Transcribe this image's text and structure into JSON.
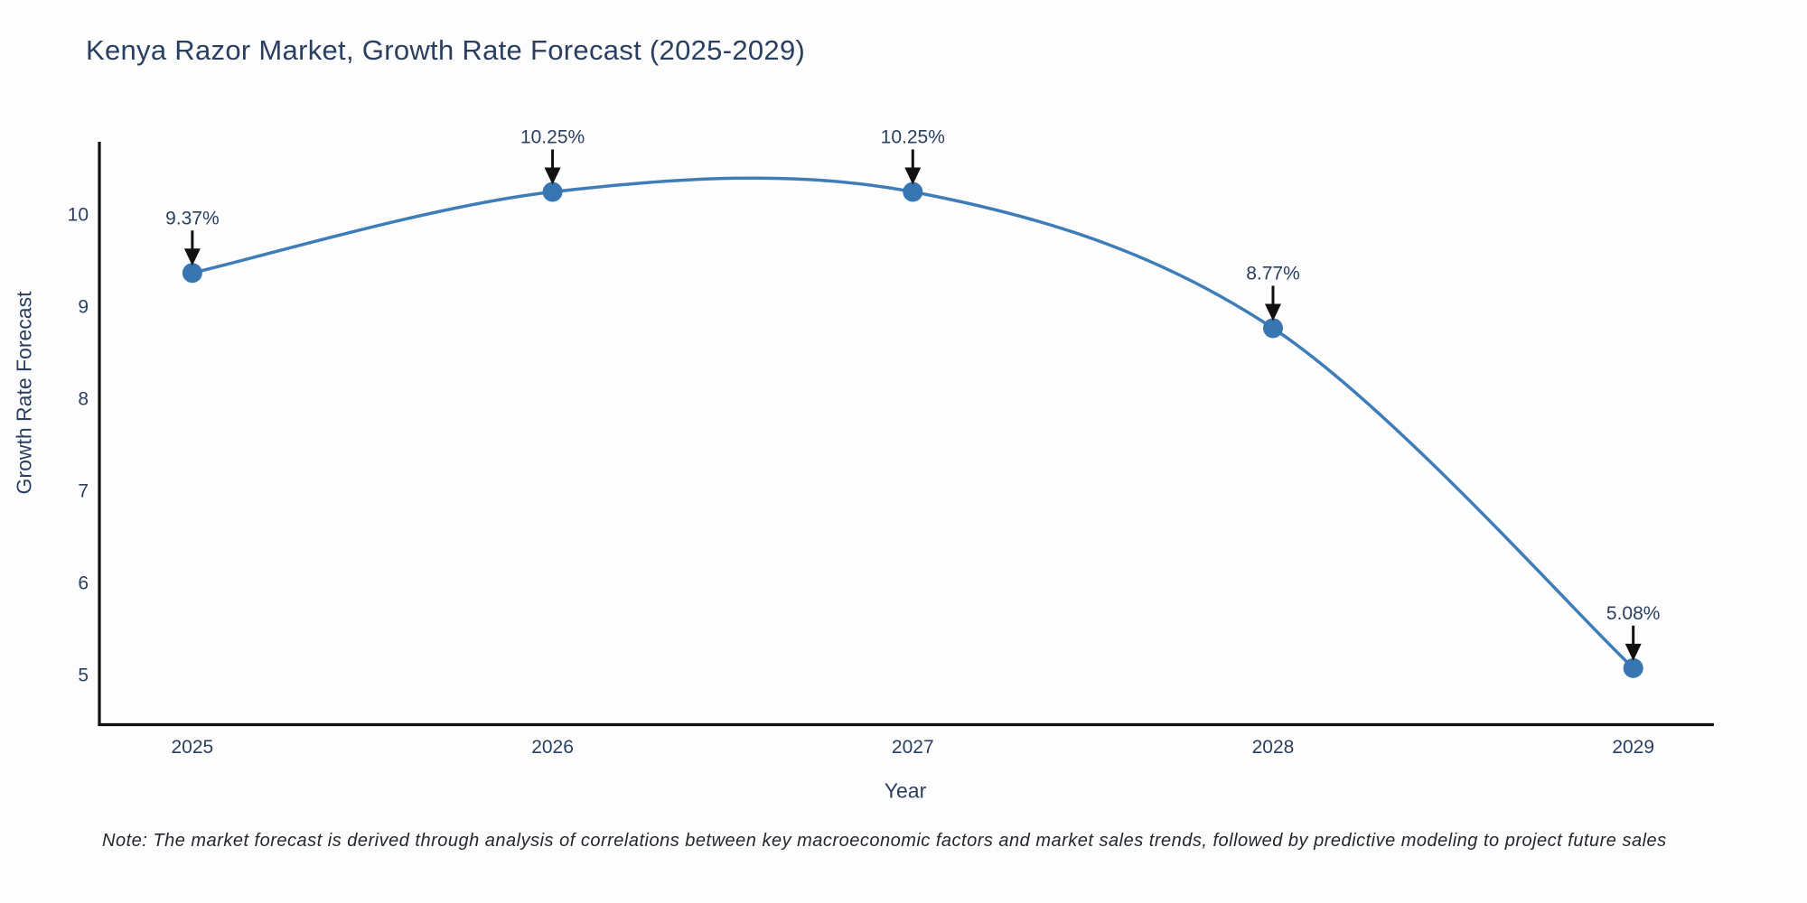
{
  "title": "Kenya Razor Market, Growth Rate Forecast (2025-2029)",
  "note": "Note: The market forecast is derived through analysis of correlations between key macroeconomic factors and market sales trends, followed by predictive modeling to project future sales",
  "chart_data": {
    "type": "line",
    "title": "Kenya Razor Market, Growth Rate Forecast (2025-2029)",
    "xlabel": "Year",
    "ylabel": "Growth Rate Forecast",
    "x": [
      2025,
      2026,
      2027,
      2028,
      2029
    ],
    "values": [
      9.37,
      10.25,
      10.25,
      8.77,
      5.08
    ],
    "point_labels": [
      "9.37%",
      "10.25%",
      "10.25%",
      "8.77%",
      "5.08%"
    ],
    "xticks": [
      "2025",
      "2026",
      "2027",
      "2028",
      "2029"
    ],
    "yticks": [
      5,
      6,
      7,
      8,
      9,
      10
    ],
    "xlim": [
      2024.742,
      2029.224
    ],
    "ylim": [
      4.466,
      10.794
    ],
    "line_shape": "spline",
    "grid": false,
    "legend": "none",
    "colors": {
      "line": "#3e7db8",
      "marker": "#3876b1",
      "arrow": "#111111",
      "axis": "#111111",
      "tick_text": "#2a3f5f",
      "annotation_text": "#2a3f5f"
    }
  }
}
